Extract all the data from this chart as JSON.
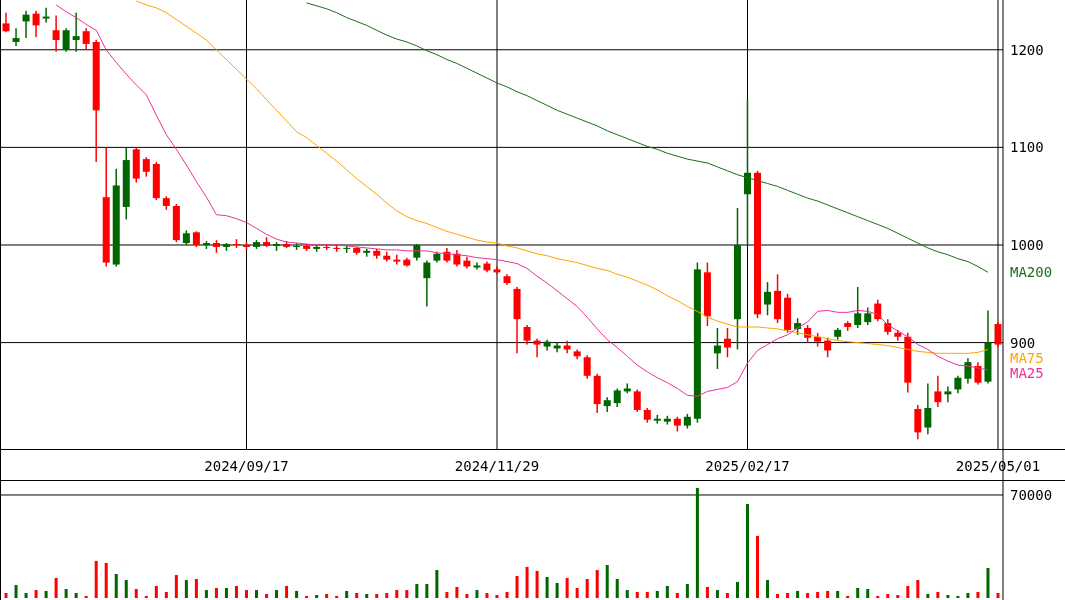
{
  "chart_data": [
    {
      "type": "candlestick",
      "categories": [
        null,
        null,
        null,
        null,
        null,
        null,
        null,
        null,
        null,
        null,
        null,
        null,
        null,
        null,
        null,
        null,
        null,
        null,
        null,
        null,
        null,
        null,
        null,
        null,
        "2024/09/17",
        null,
        null,
        null,
        null,
        null,
        null,
        null,
        null,
        null,
        null,
        null,
        null,
        null,
        null,
        null,
        null,
        null,
        null,
        null,
        null,
        null,
        null,
        null,
        null,
        "2024/11/29",
        null,
        null,
        null,
        null,
        null,
        null,
        null,
        null,
        null,
        null,
        null,
        null,
        null,
        null,
        null,
        null,
        null,
        null,
        null,
        null,
        null,
        null,
        null,
        null,
        "2025/02/17",
        null,
        null,
        null,
        null,
        null,
        null,
        null,
        null,
        null,
        null,
        null,
        null,
        null,
        null,
        null,
        null,
        null,
        null,
        null,
        null,
        null,
        null,
        null,
        null,
        "2025/05/01"
      ],
      "ohlc": [
        [
          1227,
          1238,
          1218,
          1219
        ],
        [
          1208,
          1222,
          1204,
          1212
        ],
        [
          1229,
          1240,
          1212,
          1236
        ],
        [
          1237,
          1240,
          1213,
          1225
        ],
        [
          1232,
          1243,
          1228,
          1234
        ],
        [
          1220,
          1235,
          1198,
          1210
        ],
        [
          1200,
          1222,
          1198,
          1220
        ],
        [
          1210,
          1238,
          1198,
          1214
        ],
        [
          1219,
          1222,
          1200,
          1206
        ],
        [
          1208,
          1210,
          1085,
          1138
        ],
        [
          1049,
          1100,
          978,
          982
        ],
        [
          980,
          1078,
          978,
          1061
        ],
        [
          1039,
          1100,
          1026,
          1087
        ],
        [
          1098,
          1100,
          1064,
          1068
        ],
        [
          1088,
          1090,
          1070,
          1075
        ],
        [
          1083,
          1085,
          1046,
          1048
        ],
        [
          1048,
          1050,
          1036,
          1040
        ],
        [
          1040,
          1042,
          1003,
          1005
        ],
        [
          1002,
          1015,
          1000,
          1012
        ],
        [
          1013,
          1014,
          998,
          1000
        ],
        [
          1000,
          1004,
          996,
          1002
        ],
        [
          1002,
          1005,
          992,
          998
        ],
        [
          998,
          1002,
          994,
          1001
        ],
        [
          1001,
          1006,
          997,
          1000
        ],
        [
          1000,
          1003,
          995,
          998
        ],
        [
          998,
          1005,
          996,
          1003
        ],
        [
          1003,
          1008,
          998,
          999
        ],
        [
          999,
          1003,
          994,
          1001
        ],
        [
          1001,
          1004,
          997,
          998
        ],
        [
          998,
          1002,
          995,
          999
        ],
        [
          999,
          1001,
          994,
          996
        ],
        [
          996,
          1000,
          993,
          998
        ],
        [
          998,
          1001,
          995,
          997
        ],
        [
          997,
          1000,
          993,
          996
        ],
        [
          996,
          999,
          992,
          997
        ],
        [
          997,
          998,
          990,
          992
        ],
        [
          992,
          996,
          988,
          994
        ],
        [
          994,
          996,
          986,
          989
        ],
        [
          989,
          993,
          983,
          985
        ],
        [
          985,
          990,
          980,
          983
        ],
        [
          985,
          987,
          978,
          979
        ],
        [
          987,
          1001,
          984,
          1000
        ],
        [
          966,
          984,
          937,
          982
        ],
        [
          984,
          993,
          982,
          991
        ],
        [
          993,
          997,
          982,
          984
        ],
        [
          991,
          995,
          978,
          980
        ],
        [
          984,
          988,
          976,
          978
        ],
        [
          977,
          982,
          975,
          979
        ],
        [
          981,
          983,
          972,
          974
        ],
        [
          975,
          978,
          970,
          972
        ],
        [
          968,
          970,
          959,
          961
        ],
        [
          955,
          957,
          889,
          924
        ],
        [
          916,
          918,
          898,
          902
        ],
        [
          902,
          904,
          885,
          898
        ],
        [
          896,
          903,
          892,
          901
        ],
        [
          894,
          900,
          890,
          897
        ],
        [
          897,
          902,
          889,
          893
        ],
        [
          891,
          893,
          883,
          886
        ],
        [
          885,
          887,
          863,
          866
        ],
        [
          866,
          868,
          828,
          837
        ],
        [
          835,
          844,
          829,
          841
        ],
        [
          838,
          853,
          834,
          851
        ],
        [
          850,
          858,
          848,
          853
        ],
        [
          850,
          852,
          829,
          831
        ],
        [
          831,
          833,
          818,
          821
        ],
        [
          820,
          826,
          817,
          822
        ],
        [
          819,
          825,
          816,
          822
        ],
        [
          822,
          824,
          809,
          815
        ],
        [
          815,
          827,
          812,
          824
        ],
        [
          822,
          982,
          818,
          975
        ],
        [
          972,
          982,
          917,
          927
        ],
        [
          889,
          915,
          873,
          897
        ],
        [
          904,
          915,
          885,
          895
        ],
        [
          924,
          1038,
          893,
          1000
        ],
        [
          1052,
          1149,
          1000,
          1074
        ],
        [
          1074,
          1076,
          925,
          929
        ],
        [
          939,
          962,
          928,
          952
        ],
        [
          953,
          970,
          920,
          924
        ],
        [
          946,
          950,
          910,
          913
        ],
        [
          914,
          925,
          908,
          920
        ],
        [
          915,
          918,
          900,
          905
        ],
        [
          906,
          910,
          896,
          901
        ],
        [
          902,
          905,
          885,
          892
        ],
        [
          906,
          915,
          903,
          913
        ],
        [
          920,
          922,
          912,
          916
        ],
        [
          918,
          957,
          915,
          930
        ],
        [
          921,
          936,
          918,
          930
        ],
        [
          940,
          944,
          922,
          924
        ],
        [
          920,
          924,
          908,
          911
        ],
        [
          910,
          913,
          902,
          906
        ],
        [
          906,
          910,
          849,
          859
        ],
        [
          832,
          836,
          801,
          808
        ],
        [
          813,
          858,
          806,
          833
        ],
        [
          850,
          866,
          834,
          839
        ],
        [
          847,
          855,
          839,
          850
        ],
        [
          852,
          866,
          848,
          864
        ],
        [
          863,
          884,
          858,
          880
        ],
        [
          876,
          880,
          857,
          859
        ],
        [
          860,
          933,
          858,
          900
        ],
        [
          919,
          921,
          896,
          898
        ]
      ],
      "colors": [
        "#ff0000",
        "#006600",
        "#006600",
        "#ff0000",
        "#006600",
        "#ff0000",
        "#006600",
        "#006600",
        "#ff0000",
        "#ff0000",
        "#ff0000",
        "#006600",
        "#006600",
        "#ff0000",
        "#ff0000",
        "#ff0000",
        "#ff0000",
        "#ff0000",
        "#006600",
        "#ff0000",
        "#006600",
        "#ff0000",
        "#006600",
        "#ff0000",
        "#ff0000",
        "#006600",
        "#ff0000",
        "#006600",
        "#ff0000",
        "#006600",
        "#ff0000",
        "#006600",
        "#ff0000",
        "#ff0000",
        "#006600",
        "#ff0000",
        "#006600",
        "#ff0000",
        "#ff0000",
        "#ff0000",
        "#ff0000",
        "#006600",
        "#006600",
        "#006600",
        "#ff0000",
        "#ff0000",
        "#ff0000",
        "#006600",
        "#ff0000",
        "#ff0000",
        "#ff0000",
        "#ff0000",
        "#ff0000",
        "#ff0000",
        "#006600",
        "#006600",
        "#ff0000",
        "#ff0000",
        "#ff0000",
        "#ff0000",
        "#006600",
        "#006600",
        "#006600",
        "#ff0000",
        "#ff0000",
        "#006600",
        "#006600",
        "#ff0000",
        "#006600",
        "#006600",
        "#ff0000",
        "#006600",
        "#ff0000",
        "#006600",
        "#006600",
        "#ff0000",
        "#006600",
        "#ff0000",
        "#ff0000",
        "#006600",
        "#ff0000",
        "#ff0000",
        "#ff0000",
        "#006600",
        "#ff0000",
        "#006600",
        "#006600",
        "#ff0000",
        "#ff0000",
        "#ff0000",
        "#ff0000",
        "#ff0000",
        "#006600",
        "#ff0000",
        "#006600",
        "#006600",
        "#006600",
        "#ff0000",
        "#006600",
        "#ff0000"
      ],
      "series": [
        {
          "type": "line",
          "name": "MA200",
          "color": "#1a6e1a",
          "values": [
            null,
            null,
            null,
            null,
            null,
            null,
            null,
            null,
            null,
            null,
            null,
            null,
            null,
            null,
            null,
            null,
            null,
            null,
            null,
            null,
            null,
            null,
            null,
            null,
            null,
            null,
            null,
            null,
            null,
            null,
            1248,
            1245,
            1242,
            1238,
            1233,
            1229,
            1225,
            1220,
            1215,
            1211,
            1208,
            1204,
            1199,
            1195,
            1190,
            1186,
            1181,
            1176,
            1171,
            1166,
            1162,
            1157,
            1153,
            1148,
            1143,
            1138,
            1134,
            1130,
            1126,
            1122,
            1117,
            1113,
            1109,
            1105,
            1101,
            1098,
            1094,
            1091,
            1088,
            1086,
            1084,
            1080,
            1076,
            1072,
            1069,
            1066,
            1063,
            1060,
            1056,
            1052,
            1048,
            1045,
            1041,
            1037,
            1033,
            1029,
            1025,
            1021,
            1017,
            1012,
            1007,
            1002,
            997,
            993,
            990,
            986,
            983,
            978,
            972,
            null
          ]
        },
        {
          "type": "line",
          "name": "MA75",
          "color": "#ffa500",
          "values": [
            null,
            null,
            null,
            null,
            null,
            null,
            null,
            null,
            null,
            null,
            null,
            null,
            null,
            1250,
            1246,
            1243,
            1238,
            1231,
            1224,
            1217,
            1210,
            1200,
            1190,
            1180,
            1170,
            1160,
            1149,
            1138,
            1127,
            1116,
            1110,
            1102,
            1094,
            1086,
            1077,
            1068,
            1060,
            1052,
            1043,
            1035,
            1029,
            1025,
            1022,
            1018,
            1014,
            1011,
            1008,
            1005,
            1003,
            1002,
            999,
            997,
            994,
            991,
            989,
            986,
            984,
            982,
            979,
            976,
            974,
            970,
            967,
            963,
            959,
            954,
            948,
            943,
            937,
            932,
            926,
            922,
            919,
            916,
            916,
            916,
            915,
            914,
            912,
            910,
            908,
            906,
            904,
            902,
            901,
            900,
            899,
            898,
            897,
            895,
            893,
            891,
            890,
            889,
            889,
            889,
            889,
            890,
            893,
            null
          ]
        },
        {
          "type": "line",
          "name": "MA25",
          "color": "#f0309a",
          "values": [
            null,
            null,
            null,
            null,
            null,
            1246,
            1239,
            1233,
            1226,
            1220,
            1200,
            1187,
            1175,
            1164,
            1154,
            1133,
            1113,
            1098,
            1082,
            1065,
            1049,
            1031,
            1030,
            1027,
            1023,
            1017,
            1011,
            1006,
            1003,
            1002,
            1001,
            1000,
            1000,
            1000,
            999,
            998,
            997,
            996,
            995,
            995,
            994,
            994,
            994,
            992,
            991,
            990,
            989,
            987,
            986,
            985,
            983,
            981,
            976,
            968,
            961,
            953,
            945,
            937,
            926,
            914,
            903,
            895,
            886,
            877,
            870,
            864,
            859,
            853,
            846,
            845,
            850,
            852,
            854,
            860,
            879,
            892,
            898,
            904,
            908,
            915,
            921,
            932,
            933,
            931,
            931,
            933,
            932,
            929,
            918,
            912,
            906,
            898,
            893,
            886,
            881,
            877,
            876,
            874,
            872,
            null
          ]
        }
      ],
      "ylim": [
        791,
        1251
      ],
      "yticks": [
        900,
        1000,
        1100,
        1200
      ],
      "grid": true
    },
    {
      "type": "bar",
      "ylim": [
        0,
        79500
      ],
      "yticks": [
        70000
      ],
      "grid": "y",
      "categories": [
        null,
        null,
        null,
        null,
        null,
        null,
        null,
        null,
        null,
        null,
        null,
        null,
        null,
        null,
        null,
        null,
        null,
        null,
        null,
        null,
        null,
        null,
        null,
        null,
        null,
        null,
        null,
        null,
        null,
        null,
        null,
        null,
        null,
        null,
        null,
        null,
        null,
        null,
        null,
        null,
        null,
        null,
        null,
        null,
        null,
        null,
        null,
        null,
        null,
        null,
        null,
        null,
        null,
        null,
        null,
        null,
        null,
        null,
        null,
        null,
        null,
        null,
        null,
        null,
        null,
        null,
        null,
        null,
        null,
        null,
        null,
        null,
        null,
        null,
        null,
        null,
        null,
        null,
        null,
        null,
        null,
        null,
        null,
        null,
        null,
        null,
        null,
        null,
        null,
        null,
        null,
        null,
        null,
        null,
        null,
        null,
        null,
        null,
        null,
        null
      ],
      "values": [
        3400,
        8800,
        3400,
        5400,
        4800,
        13600,
        6100,
        3400,
        1400,
        25200,
        23800,
        16300,
        12200,
        6100,
        1400,
        8200,
        4100,
        15600,
        12200,
        12900,
        5400,
        6800,
        6800,
        8200,
        5400,
        5400,
        2700,
        5400,
        8200,
        4800,
        1400,
        2000,
        2700,
        1400,
        4800,
        3400,
        2700,
        2700,
        3400,
        5400,
        5400,
        9500,
        9500,
        19000,
        4100,
        7500,
        2700,
        5400,
        3400,
        2000,
        4100,
        15000,
        21100,
        18400,
        14300,
        10200,
        13600,
        6800,
        12900,
        19000,
        22400,
        12900,
        5400,
        4100,
        4100,
        4800,
        8200,
        3400,
        9500,
        74800,
        7500,
        5400,
        3400,
        10900,
        63900,
        42200,
        12200,
        2700,
        3400,
        4800,
        3400,
        4100,
        4800,
        4800,
        1400,
        6800,
        6100,
        1400,
        2700,
        2000,
        8200,
        12200,
        2700,
        4100,
        2000,
        1400,
        3400,
        4100,
        20400,
        3400
      ],
      "colors": [
        "#ff0000",
        "#006600",
        "#006600",
        "#ff0000",
        "#006600",
        "#ff0000",
        "#006600",
        "#006600",
        "#ff0000",
        "#ff0000",
        "#ff0000",
        "#006600",
        "#006600",
        "#ff0000",
        "#ff0000",
        "#ff0000",
        "#ff0000",
        "#ff0000",
        "#006600",
        "#ff0000",
        "#006600",
        "#ff0000",
        "#006600",
        "#ff0000",
        "#ff0000",
        "#006600",
        "#ff0000",
        "#006600",
        "#ff0000",
        "#006600",
        "#ff0000",
        "#006600",
        "#ff0000",
        "#ff0000",
        "#006600",
        "#ff0000",
        "#006600",
        "#ff0000",
        "#ff0000",
        "#ff0000",
        "#ff0000",
        "#006600",
        "#006600",
        "#006600",
        "#ff0000",
        "#ff0000",
        "#ff0000",
        "#006600",
        "#ff0000",
        "#ff0000",
        "#ff0000",
        "#ff0000",
        "#ff0000",
        "#ff0000",
        "#006600",
        "#006600",
        "#ff0000",
        "#ff0000",
        "#ff0000",
        "#ff0000",
        "#006600",
        "#006600",
        "#006600",
        "#ff0000",
        "#ff0000",
        "#006600",
        "#006600",
        "#ff0000",
        "#006600",
        "#006600",
        "#ff0000",
        "#006600",
        "#ff0000",
        "#006600",
        "#006600",
        "#ff0000",
        "#006600",
        "#ff0000",
        "#ff0000",
        "#006600",
        "#ff0000",
        "#ff0000",
        "#ff0000",
        "#006600",
        "#ff0000",
        "#006600",
        "#006600",
        "#ff0000",
        "#ff0000",
        "#ff0000",
        "#ff0000",
        "#ff0000",
        "#006600",
        "#ff0000",
        "#006600",
        "#006600",
        "#006600",
        "#ff0000",
        "#006600",
        "#ff0000"
      ]
    }
  ]
}
